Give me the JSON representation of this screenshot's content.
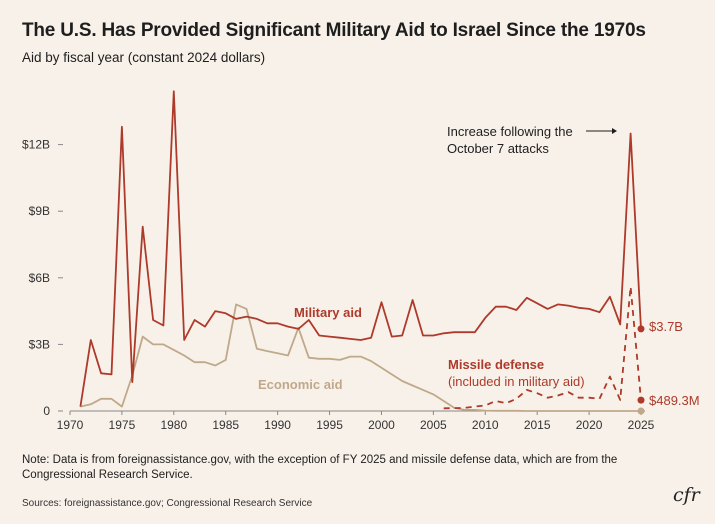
{
  "header": {
    "title": "The U.S. Has Provided Significant Military Aid to Israel Since the 1970s",
    "subtitle": "Aid by fiscal year (constant 2024 dollars)"
  },
  "footer": {
    "note": "Note: Data is from foreignassistance.gov, with the exception of FY 2025 and missile defense data, which are from the Congressional Research Service.",
    "sources": "Sources: foreignassistance.gov; Congressional Research Service",
    "logo_text": "cfr"
  },
  "colors": {
    "background": "#f8f1e9",
    "military": "#ad3a2a",
    "economic": "#c0a98a",
    "missile": "#ad3a2a",
    "axis": "#888888"
  },
  "chart_data": {
    "type": "line",
    "title": "The U.S. Has Provided Significant Military Aid to Israel Since the 1970s",
    "subtitle": "Aid by fiscal year (constant 2024 dollars)",
    "xlabel": "",
    "ylabel": "",
    "xlim": [
      1970,
      2025
    ],
    "ylim": [
      0,
      15
    ],
    "grid": false,
    "x_ticks": [
      1970,
      1975,
      1980,
      1985,
      1990,
      1995,
      2000,
      2005,
      2010,
      2015,
      2020,
      2025
    ],
    "y_ticks": [
      {
        "value": 0,
        "label": "0"
      },
      {
        "value": 3,
        "label": "$3B"
      },
      {
        "value": 6,
        "label": "$6B"
      },
      {
        "value": 9,
        "label": "$9B"
      },
      {
        "value": 12,
        "label": "$12B"
      }
    ],
    "series": [
      {
        "key": "military",
        "name": "Military aid",
        "style": "solid",
        "x": [
          1971,
          1972,
          1973,
          1974,
          1975,
          1976,
          1977,
          1978,
          1979,
          1980,
          1981,
          1982,
          1983,
          1984,
          1985,
          1986,
          1987,
          1988,
          1989,
          1990,
          1991,
          1992,
          1993,
          1994,
          1995,
          1996,
          1997,
          1998,
          1999,
          2000,
          2001,
          2002,
          2003,
          2004,
          2005,
          2006,
          2007,
          2008,
          2009,
          2010,
          2011,
          2012,
          2013,
          2014,
          2015,
          2016,
          2017,
          2018,
          2019,
          2020,
          2021,
          2022,
          2023,
          2024,
          2025
        ],
        "values": [
          0.2,
          3.2,
          1.7,
          1.65,
          12.8,
          1.3,
          8.3,
          4.1,
          3.85,
          14.4,
          3.2,
          4.1,
          3.8,
          4.5,
          4.4,
          4.15,
          4.25,
          4.15,
          3.95,
          3.95,
          3.8,
          3.7,
          4.1,
          3.4,
          3.35,
          3.3,
          3.25,
          3.2,
          3.3,
          4.9,
          3.35,
          3.4,
          5.0,
          3.4,
          3.4,
          3.5,
          3.55,
          3.55,
          3.55,
          4.2,
          4.7,
          4.7,
          4.55,
          5.1,
          4.85,
          4.6,
          4.8,
          4.75,
          4.65,
          4.6,
          4.45,
          5.15,
          3.9,
          12.5,
          3.7
        ]
      },
      {
        "key": "economic",
        "name": "Economic aid",
        "style": "solid",
        "x": [
          1971,
          1972,
          1973,
          1974,
          1975,
          1976,
          1977,
          1978,
          1979,
          1980,
          1981,
          1982,
          1983,
          1984,
          1985,
          1986,
          1987,
          1988,
          1989,
          1990,
          1991,
          1992,
          1993,
          1994,
          1995,
          1996,
          1997,
          1998,
          1999,
          2000,
          2001,
          2002,
          2003,
          2004,
          2005,
          2006,
          2007,
          2008,
          2009,
          2010,
          2011,
          2012,
          2013,
          2014,
          2015,
          2016,
          2017,
          2018,
          2019,
          2020,
          2021,
          2022,
          2023,
          2024,
          2025
        ],
        "values": [
          0.2,
          0.3,
          0.55,
          0.55,
          0.2,
          1.6,
          3.35,
          3.0,
          3.0,
          2.75,
          2.5,
          2.2,
          2.2,
          2.05,
          2.3,
          4.8,
          4.6,
          2.8,
          2.7,
          2.6,
          2.5,
          3.75,
          2.4,
          2.35,
          2.35,
          2.3,
          2.45,
          2.45,
          2.25,
          1.95,
          1.65,
          1.35,
          1.15,
          0.95,
          0.75,
          0.45,
          0.15,
          0.05,
          0.05,
          0.02,
          0.01,
          0.01,
          0.01,
          0,
          0,
          0,
          0,
          0,
          0,
          0,
          0,
          0,
          0,
          0,
          0
        ]
      },
      {
        "key": "missile",
        "name": "Missile defense",
        "subname": "(included in military aid)",
        "style": "dashed",
        "x": [
          2006,
          2007,
          2008,
          2009,
          2010,
          2011,
          2012,
          2013,
          2014,
          2015,
          2016,
          2017,
          2018,
          2019,
          2020,
          2021,
          2022,
          2023,
          2024,
          2025
        ],
        "values": [
          0.12,
          0.13,
          0.14,
          0.2,
          0.25,
          0.45,
          0.35,
          0.55,
          0.95,
          0.8,
          0.6,
          0.7,
          0.85,
          0.6,
          0.6,
          0.55,
          1.55,
          0.5,
          5.6,
          0.4893
        ]
      }
    ],
    "end_labels": [
      {
        "series": "military",
        "text": "$3.7B"
      },
      {
        "series": "missile",
        "text": "$489.3M"
      }
    ],
    "annotations": {
      "spike_note_line1": "Increase following the",
      "spike_note_line2": "October 7 attacks"
    }
  }
}
